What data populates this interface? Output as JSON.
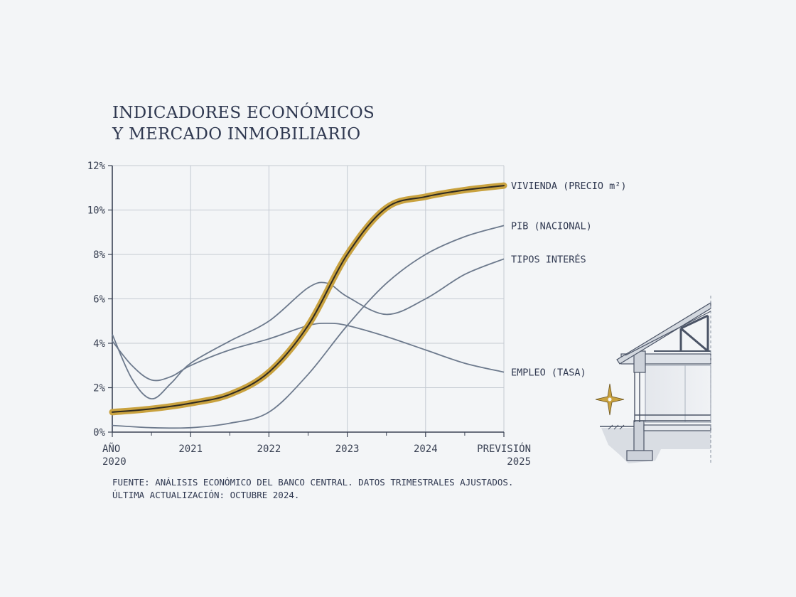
{
  "title": {
    "line1": "INDICADORES ECONÓMICOS",
    "line2": "Y MERCADO INMOBILIARIO"
  },
  "source": {
    "line1": "FUENTE: ANÁLISIS ECONÓMICO DEL BANCO CENTRAL. DATOS TRIMESTRALES AJUSTADOS.",
    "line2": "ÚLTIMA ACTUALIZACIÓN: OCTUBRE 2024."
  },
  "chart_data": {
    "type": "line",
    "title": "INDICADORES ECONÓMICOS Y MERCADO INMOBILIARIO",
    "xlabel": "",
    "ylabel": "",
    "xlim": [
      2020,
      2025
    ],
    "ylim": [
      0,
      12
    ],
    "y_ticks": [
      0,
      2,
      4,
      6,
      8,
      10,
      12
    ],
    "y_tick_labels": [
      "0%",
      "2%",
      "4%",
      "6%",
      "8%",
      "10%",
      "12%"
    ],
    "x_ticks": [
      2020,
      2021,
      2022,
      2023,
      2024,
      2025
    ],
    "x_tick_labels": [
      {
        "line1": "AÑO",
        "line2": "2020"
      },
      {
        "line1": "2021",
        "line2": ""
      },
      {
        "line1": "2022",
        "line2": ""
      },
      {
        "line1": "2023",
        "line2": ""
      },
      {
        "line1": "2024",
        "line2": ""
      },
      {
        "line1": "PREVISIÓN",
        "line2": "2025"
      }
    ],
    "grid": true,
    "legend": "right-end labels",
    "colors": {
      "highlight": "#c9a23f",
      "highlight_core": "#2e2a22",
      "series": "#6d7a8d",
      "grid": "#c4cad2",
      "axis": "#3a4254"
    },
    "series": [
      {
        "name": "VIVIENDA (PRECIO m²)",
        "highlight": true,
        "x": [
          2020,
          2020.5,
          2021,
          2021.5,
          2022,
          2022.5,
          2023,
          2023.5,
          2024,
          2024.5,
          2025
        ],
        "y": [
          0.9,
          1.05,
          1.3,
          1.7,
          2.7,
          4.8,
          8.0,
          10.1,
          10.6,
          10.9,
          11.1
        ]
      },
      {
        "name": "PIB (NACIONAL)",
        "x": [
          2020,
          2020.25,
          2020.5,
          2020.75,
          2021,
          2021.5,
          2022,
          2022.5,
          2022.75,
          2023,
          2023.5,
          2024,
          2024.5,
          2025
        ],
        "y": [
          4.4,
          2.4,
          1.5,
          2.2,
          3.1,
          4.1,
          5.0,
          6.5,
          6.7,
          6.1,
          5.3,
          6.0,
          7.1,
          7.8
        ]
      },
      {
        "name": "TIPOS INTERÉS",
        "x": [
          2020,
          2020.5,
          2021,
          2021.5,
          2022,
          2022.5,
          2023,
          2023.5,
          2024,
          2024.5,
          2025
        ],
        "y": [
          0.3,
          0.2,
          0.2,
          0.4,
          0.9,
          2.6,
          4.8,
          6.7,
          8.0,
          8.8,
          9.3
        ]
      },
      {
        "name": "EMPLEO (TASA)",
        "x": [
          2020,
          2020.25,
          2020.5,
          2020.75,
          2021,
          2021.5,
          2022,
          2022.5,
          2022.75,
          2023,
          2023.5,
          2024,
          2024.5,
          2025
        ],
        "y": [
          4.1,
          3.0,
          2.35,
          2.5,
          3.0,
          3.7,
          4.2,
          4.8,
          4.9,
          4.8,
          4.3,
          3.7,
          3.1,
          2.7
        ]
      }
    ]
  }
}
